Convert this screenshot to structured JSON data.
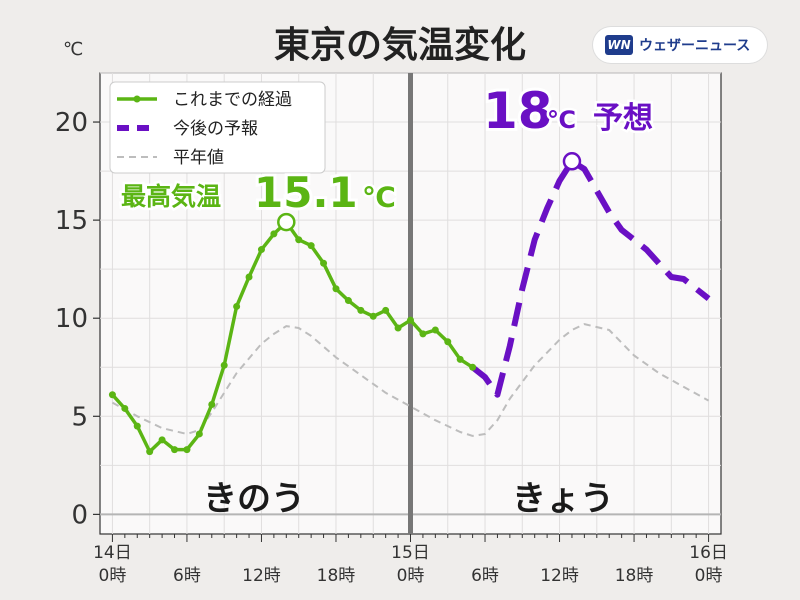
{
  "title": "東京の気温変化",
  "brand": {
    "logo": "WN",
    "name": "ウェザーニュース"
  },
  "chart_data": {
    "type": "line",
    "unit": "℃",
    "ylim": [
      -1,
      22.5
    ],
    "yticks": [
      0,
      5,
      10,
      15,
      20
    ],
    "xlim": [
      -1,
      49
    ],
    "xticks": [
      {
        "x": 0,
        "label": [
          "14日",
          "0時"
        ]
      },
      {
        "x": 6,
        "label": [
          "",
          "6時"
        ]
      },
      {
        "x": 12,
        "label": [
          "",
          "12時"
        ]
      },
      {
        "x": 18,
        "label": [
          "",
          "18時"
        ]
      },
      {
        "x": 24,
        "label": [
          "15日",
          "0時"
        ]
      },
      {
        "x": 30,
        "label": [
          "",
          "6時"
        ]
      },
      {
        "x": 36,
        "label": [
          "",
          "12時"
        ]
      },
      {
        "x": 42,
        "label": [
          "",
          "18時"
        ]
      },
      {
        "x": 48,
        "label": [
          "16日",
          "0時"
        ]
      }
    ],
    "now_x": 24,
    "grid": true,
    "legend_position": "top-left",
    "series": [
      {
        "name": "これまでの経過",
        "color": "#5bb514",
        "style": "solid-markers",
        "points": [
          [
            0,
            6.1
          ],
          [
            1,
            5.4
          ],
          [
            2,
            4.5
          ],
          [
            3,
            3.2
          ],
          [
            4,
            3.8
          ],
          [
            5,
            3.3
          ],
          [
            6,
            3.3
          ],
          [
            7,
            4.1
          ],
          [
            8,
            5.6
          ],
          [
            9,
            7.6
          ],
          [
            10,
            10.6
          ],
          [
            11,
            12.1
          ],
          [
            12,
            13.5
          ],
          [
            13,
            14.3
          ],
          [
            14,
            14.9
          ],
          [
            15,
            14.0
          ],
          [
            16,
            13.7
          ],
          [
            17,
            12.8
          ],
          [
            18,
            11.5
          ],
          [
            19,
            10.9
          ],
          [
            20,
            10.4
          ],
          [
            21,
            10.1
          ],
          [
            22,
            10.4
          ],
          [
            23,
            9.5
          ],
          [
            24,
            9.9
          ],
          [
            25,
            9.2
          ],
          [
            26,
            9.4
          ],
          [
            27,
            8.8
          ],
          [
            28,
            7.9
          ],
          [
            29,
            7.5
          ]
        ]
      },
      {
        "name": "今後の予報",
        "color": "#6a10c4",
        "style": "dashed",
        "points": [
          [
            29,
            7.5
          ],
          [
            30,
            7.0
          ],
          [
            31,
            6.1
          ],
          [
            32,
            8.6
          ],
          [
            33,
            11.5
          ],
          [
            34,
            14.0
          ],
          [
            35,
            15.6
          ],
          [
            36,
            17.0
          ],
          [
            37,
            18.0
          ],
          [
            38,
            17.6
          ],
          [
            39,
            16.5
          ],
          [
            40,
            15.4
          ],
          [
            41,
            14.5
          ],
          [
            42,
            14.0
          ],
          [
            43,
            13.5
          ],
          [
            44,
            12.8
          ],
          [
            45,
            12.1
          ],
          [
            46,
            12.0
          ],
          [
            47,
            11.5
          ],
          [
            48,
            11.0
          ]
        ]
      },
      {
        "name": "平年値",
        "color": "#bdbdbd",
        "style": "dashed-thin",
        "points": [
          [
            0,
            5.7
          ],
          [
            2,
            5.0
          ],
          [
            4,
            4.4
          ],
          [
            6,
            4.1
          ],
          [
            7,
            4.3
          ],
          [
            8,
            5.2
          ],
          [
            10,
            7.2
          ],
          [
            12,
            8.7
          ],
          [
            13,
            9.2
          ],
          [
            14,
            9.6
          ],
          [
            15,
            9.5
          ],
          [
            16,
            9.1
          ],
          [
            18,
            8.0
          ],
          [
            20,
            7.1
          ],
          [
            22,
            6.2
          ],
          [
            24,
            5.5
          ],
          [
            26,
            4.8
          ],
          [
            28,
            4.2
          ],
          [
            29,
            4.0
          ],
          [
            30,
            4.1
          ],
          [
            31,
            4.8
          ],
          [
            32,
            5.9
          ],
          [
            34,
            7.6
          ],
          [
            36,
            8.9
          ],
          [
            37,
            9.4
          ],
          [
            38,
            9.7
          ],
          [
            40,
            9.4
          ],
          [
            42,
            8.1
          ],
          [
            44,
            7.2
          ],
          [
            46,
            6.5
          ],
          [
            48,
            5.8
          ]
        ]
      }
    ],
    "max_marker": {
      "x": 14,
      "y": 14.9,
      "color": "#5bb514"
    },
    "forecast_marker": {
      "x": 37,
      "y": 18.0,
      "color": "#6a10c4"
    },
    "annotations": {
      "yesterday_max": {
        "label": "最高気温",
        "value": "15.1",
        "unit": "℃",
        "color": "#5bb514"
      },
      "today_forecast": {
        "value": "18",
        "unit": "℃",
        "label": "予想",
        "color": "#6a10c4"
      },
      "yesterday": "きのう",
      "today": "きょう"
    }
  }
}
